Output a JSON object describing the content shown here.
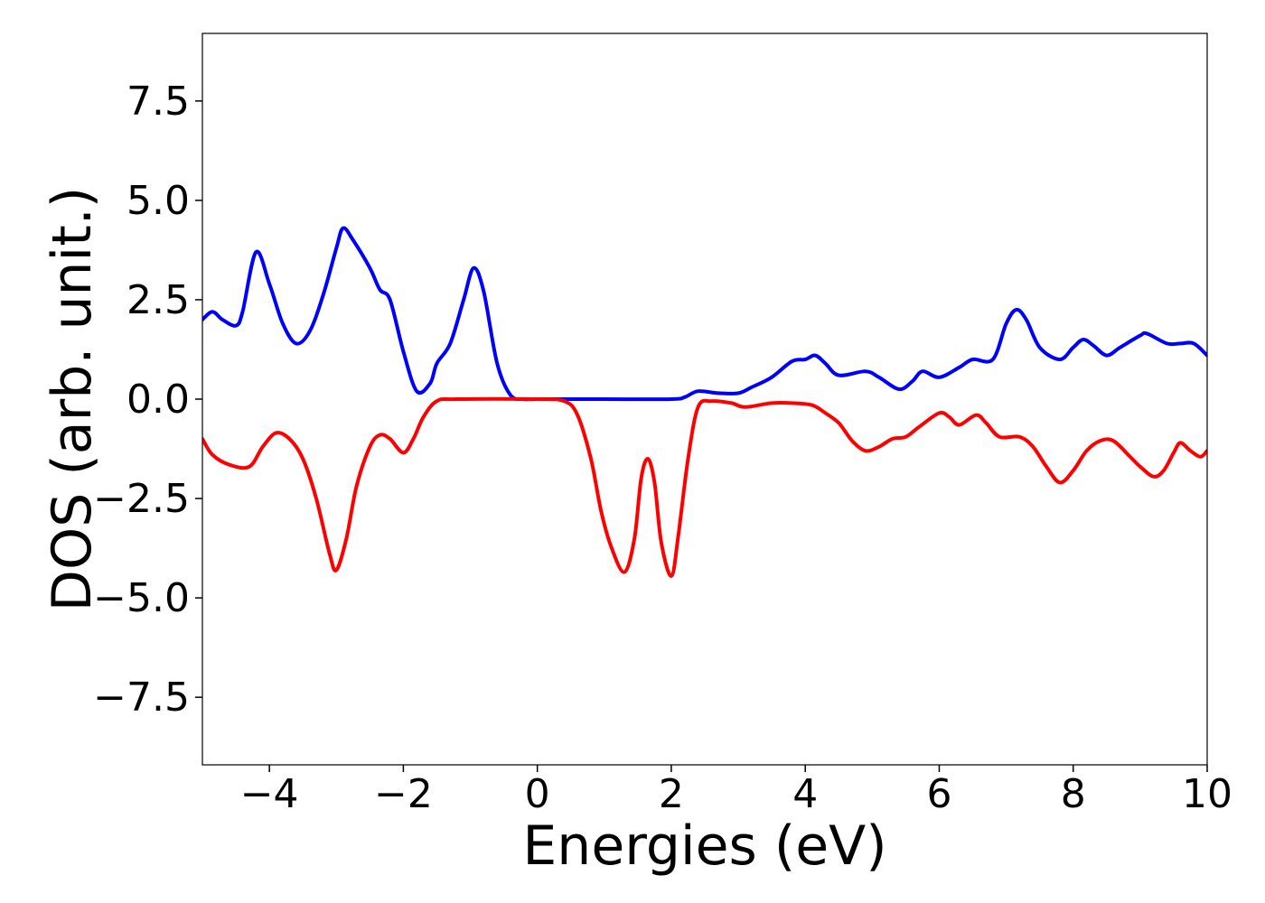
{
  "chart_data": {
    "type": "line",
    "xlabel": "Energies (eV)",
    "ylabel": "DOS (arb. unit.)",
    "xlim": [
      -5,
      10
    ],
    "ylim": [
      -9.2,
      9.2
    ],
    "grid": false,
    "legend": "none",
    "xticks": [
      {
        "value": -4,
        "label": "−4"
      },
      {
        "value": -2,
        "label": "−2"
      },
      {
        "value": 0,
        "label": "0"
      },
      {
        "value": 2,
        "label": "2"
      },
      {
        "value": 4,
        "label": "4"
      },
      {
        "value": 6,
        "label": "6"
      },
      {
        "value": 8,
        "label": "8"
      },
      {
        "value": 10,
        "label": "10"
      }
    ],
    "yticks": [
      {
        "value": -7.5,
        "label": "−7.5"
      },
      {
        "value": -5.0,
        "label": "−5.0"
      },
      {
        "value": -2.5,
        "label": "−2.5"
      },
      {
        "value": 0.0,
        "label": "0.0"
      },
      {
        "value": 2.5,
        "label": "2.5"
      },
      {
        "value": 5.0,
        "label": "5.0"
      },
      {
        "value": 7.5,
        "label": "7.5"
      }
    ],
    "series": [
      {
        "color": "#0000ff",
        "points": [
          [
            -5.0,
            2.0
          ],
          [
            -4.85,
            2.2
          ],
          [
            -4.7,
            2.0
          ],
          [
            -4.5,
            1.85
          ],
          [
            -4.4,
            2.2
          ],
          [
            -4.2,
            3.7
          ],
          [
            -4.0,
            2.9
          ],
          [
            -3.8,
            1.9
          ],
          [
            -3.6,
            1.4
          ],
          [
            -3.4,
            1.7
          ],
          [
            -3.2,
            2.6
          ],
          [
            -3.0,
            3.8
          ],
          [
            -2.9,
            4.3
          ],
          [
            -2.75,
            4.0
          ],
          [
            -2.5,
            3.3
          ],
          [
            -2.35,
            2.75
          ],
          [
            -2.2,
            2.5
          ],
          [
            -2.0,
            1.2
          ],
          [
            -1.8,
            0.2
          ],
          [
            -1.6,
            0.4
          ],
          [
            -1.5,
            0.9
          ],
          [
            -1.3,
            1.4
          ],
          [
            -1.1,
            2.5
          ],
          [
            -0.95,
            3.3
          ],
          [
            -0.8,
            2.7
          ],
          [
            -0.6,
            0.9
          ],
          [
            -0.4,
            0.1
          ],
          [
            -0.2,
            0.0
          ],
          [
            0.0,
            0.0
          ],
          [
            1.0,
            0.0
          ],
          [
            2.0,
            0.0
          ],
          [
            2.2,
            0.05
          ],
          [
            2.4,
            0.2
          ],
          [
            2.7,
            0.15
          ],
          [
            3.0,
            0.15
          ],
          [
            3.2,
            0.3
          ],
          [
            3.5,
            0.55
          ],
          [
            3.8,
            0.95
          ],
          [
            4.0,
            1.0
          ],
          [
            4.15,
            1.1
          ],
          [
            4.3,
            0.9
          ],
          [
            4.5,
            0.6
          ],
          [
            4.9,
            0.7
          ],
          [
            5.1,
            0.55
          ],
          [
            5.4,
            0.25
          ],
          [
            5.6,
            0.45
          ],
          [
            5.75,
            0.7
          ],
          [
            6.0,
            0.55
          ],
          [
            6.3,
            0.8
          ],
          [
            6.5,
            1.0
          ],
          [
            6.8,
            1.0
          ],
          [
            7.0,
            1.9
          ],
          [
            7.15,
            2.25
          ],
          [
            7.3,
            2.0
          ],
          [
            7.5,
            1.3
          ],
          [
            7.8,
            1.0
          ],
          [
            8.0,
            1.3
          ],
          [
            8.15,
            1.5
          ],
          [
            8.3,
            1.35
          ],
          [
            8.5,
            1.1
          ],
          [
            8.7,
            1.3
          ],
          [
            9.0,
            1.6
          ],
          [
            9.1,
            1.65
          ],
          [
            9.4,
            1.4
          ],
          [
            9.6,
            1.4
          ],
          [
            9.8,
            1.4
          ],
          [
            10.0,
            1.1
          ]
        ]
      },
      {
        "color": "#ff0000",
        "points": [
          [
            -5.0,
            -1.0
          ],
          [
            -4.85,
            -1.4
          ],
          [
            -4.6,
            -1.65
          ],
          [
            -4.3,
            -1.7
          ],
          [
            -4.1,
            -1.2
          ],
          [
            -3.9,
            -0.85
          ],
          [
            -3.7,
            -1.0
          ],
          [
            -3.5,
            -1.5
          ],
          [
            -3.3,
            -2.5
          ],
          [
            -3.1,
            -3.9
          ],
          [
            -3.0,
            -4.3
          ],
          [
            -2.85,
            -3.5
          ],
          [
            -2.7,
            -2.2
          ],
          [
            -2.5,
            -1.2
          ],
          [
            -2.35,
            -0.9
          ],
          [
            -2.2,
            -1.0
          ],
          [
            -2.0,
            -1.35
          ],
          [
            -1.85,
            -1.0
          ],
          [
            -1.7,
            -0.45
          ],
          [
            -1.5,
            -0.05
          ],
          [
            -1.2,
            0.0
          ],
          [
            0.0,
            0.0
          ],
          [
            0.4,
            -0.05
          ],
          [
            0.6,
            -0.4
          ],
          [
            0.8,
            -1.5
          ],
          [
            0.95,
            -2.8
          ],
          [
            1.1,
            -3.7
          ],
          [
            1.3,
            -4.35
          ],
          [
            1.45,
            -3.5
          ],
          [
            1.55,
            -2.0
          ],
          [
            1.65,
            -1.5
          ],
          [
            1.75,
            -2.1
          ],
          [
            1.85,
            -3.6
          ],
          [
            2.0,
            -4.45
          ],
          [
            2.1,
            -3.5
          ],
          [
            2.25,
            -1.5
          ],
          [
            2.4,
            -0.2
          ],
          [
            2.6,
            -0.05
          ],
          [
            2.9,
            -0.1
          ],
          [
            3.1,
            -0.2
          ],
          [
            3.5,
            -0.1
          ],
          [
            3.8,
            -0.1
          ],
          [
            4.1,
            -0.15
          ],
          [
            4.3,
            -0.35
          ],
          [
            4.5,
            -0.6
          ],
          [
            4.7,
            -1.05
          ],
          [
            4.9,
            -1.3
          ],
          [
            5.1,
            -1.2
          ],
          [
            5.3,
            -1.0
          ],
          [
            5.5,
            -0.95
          ],
          [
            5.7,
            -0.7
          ],
          [
            6.0,
            -0.35
          ],
          [
            6.15,
            -0.45
          ],
          [
            6.3,
            -0.65
          ],
          [
            6.55,
            -0.4
          ],
          [
            6.7,
            -0.6
          ],
          [
            6.9,
            -0.95
          ],
          [
            7.2,
            -0.95
          ],
          [
            7.4,
            -1.2
          ],
          [
            7.6,
            -1.7
          ],
          [
            7.8,
            -2.1
          ],
          [
            8.0,
            -1.8
          ],
          [
            8.2,
            -1.3
          ],
          [
            8.4,
            -1.05
          ],
          [
            8.6,
            -1.05
          ],
          [
            8.85,
            -1.45
          ],
          [
            9.0,
            -1.7
          ],
          [
            9.2,
            -1.95
          ],
          [
            9.35,
            -1.8
          ],
          [
            9.5,
            -1.35
          ],
          [
            9.6,
            -1.1
          ],
          [
            9.75,
            -1.3
          ],
          [
            9.9,
            -1.45
          ],
          [
            10.0,
            -1.3
          ]
        ]
      }
    ]
  }
}
